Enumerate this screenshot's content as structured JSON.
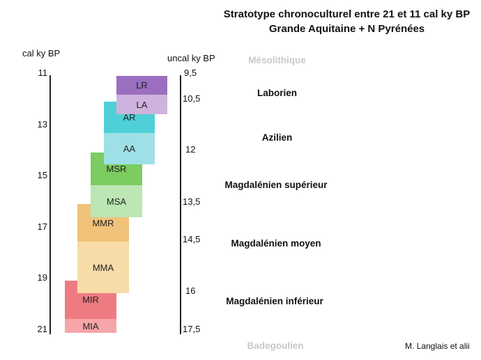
{
  "title": {
    "line1": "Stratotype chronoculturel entre 21 et 11 cal ky BP",
    "line2": "Grande Aquitaine + N Pyrénées"
  },
  "left_axis": {
    "label": "cal ky BP",
    "ticks": [
      "11",
      "13",
      "15",
      "17",
      "19",
      "21"
    ]
  },
  "right_axis": {
    "label": "uncal ky BP",
    "ticks": [
      "9,5",
      "10,5",
      "12",
      "13,5",
      "14,5",
      "16",
      "17,5"
    ]
  },
  "phases": [
    {
      "label": "LR",
      "color": "#9a6fbf"
    },
    {
      "label": "LA",
      "color": "#cdb3dd"
    },
    {
      "label": "AR",
      "color": "#4fcfd7"
    },
    {
      "label": "AA",
      "color": "#9fe0e6"
    },
    {
      "label": "MSR",
      "color": "#7ccc62"
    },
    {
      "label": "MSA",
      "color": "#bce6b3"
    },
    {
      "label": "MMR",
      "color": "#f1c37a"
    },
    {
      "label": "MMA",
      "color": "#f7dba8"
    },
    {
      "label": "MIR",
      "color": "#ef7b82"
    },
    {
      "label": "MIA",
      "color": "#f6a5a8"
    }
  ],
  "cultures": [
    {
      "label": "Mésolithique",
      "faded": true
    },
    {
      "label": "Laborien",
      "faded": false
    },
    {
      "label": "Azilien",
      "faded": false
    },
    {
      "label": "Magdalénien supérieur",
      "faded": false
    },
    {
      "label": "Magdalénien moyen",
      "faded": false
    },
    {
      "label": "Magdalénien inférieur",
      "faded": false
    },
    {
      "label": "Badegoulien",
      "faded": true
    }
  ],
  "credit": "M. Langlais et alii"
}
